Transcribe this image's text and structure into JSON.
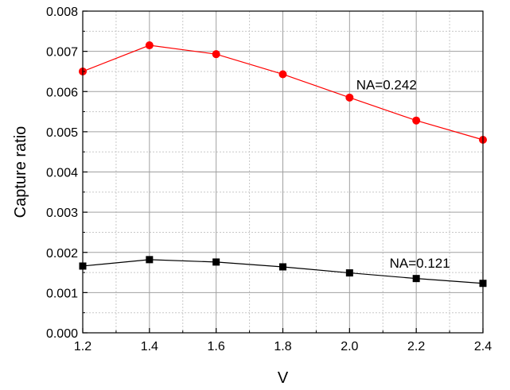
{
  "chart_data": {
    "type": "line",
    "xlabel": "V",
    "ylabel": "Capture ratio",
    "xlim": [
      1.2,
      2.4
    ],
    "ylim": [
      0.0,
      0.008
    ],
    "x_ticks": [
      "1.2",
      "1.4",
      "1.6",
      "1.8",
      "2.0",
      "2.2",
      "2.4"
    ],
    "y_ticks": [
      "0.000",
      "0.001",
      "0.002",
      "0.003",
      "0.004",
      "0.005",
      "0.006",
      "0.007",
      "0.008"
    ],
    "grid": true,
    "minor_grid": true,
    "x": [
      1.2,
      1.4,
      1.6,
      1.8,
      2.0,
      2.2,
      2.4
    ],
    "series": [
      {
        "values": [
          0.0065,
          0.00715,
          0.00693,
          0.00643,
          0.00585,
          0.00528,
          0.0048
        ],
        "color": "#ff0000",
        "marker": "circle"
      },
      {
        "values": [
          0.00166,
          0.00182,
          0.00176,
          0.00164,
          0.00149,
          0.00135,
          0.00123
        ],
        "color": "#000000",
        "marker": "square"
      }
    ],
    "annotations": [
      {
        "text": "NA=0.242",
        "x": 2.02,
        "y": 0.00605
      },
      {
        "text": "NA=0.121",
        "x": 2.12,
        "y": 0.00162
      }
    ]
  }
}
